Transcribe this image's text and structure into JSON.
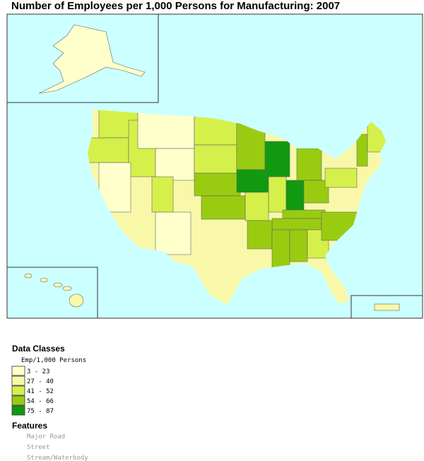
{
  "title": "Number of Employees per 1,000 Persons for Manufacturing: 2007",
  "legend": {
    "title": "Data Classes",
    "subtitle": "Emp/1,000 Persons",
    "classes": [
      {
        "label": "3 - 23",
        "color": "#ffffcc"
      },
      {
        "label": "27 - 40",
        "color": "#f8f8a8"
      },
      {
        "label": "41 - 52",
        "color": "#d5f04a"
      },
      {
        "label": "54 - 66",
        "color": "#99cc11"
      },
      {
        "label": "75 - 87",
        "color": "#119911"
      }
    ]
  },
  "features": {
    "title": "Features",
    "items": [
      "Major Road",
      "Street",
      "Stream/Waterbody"
    ]
  }
}
